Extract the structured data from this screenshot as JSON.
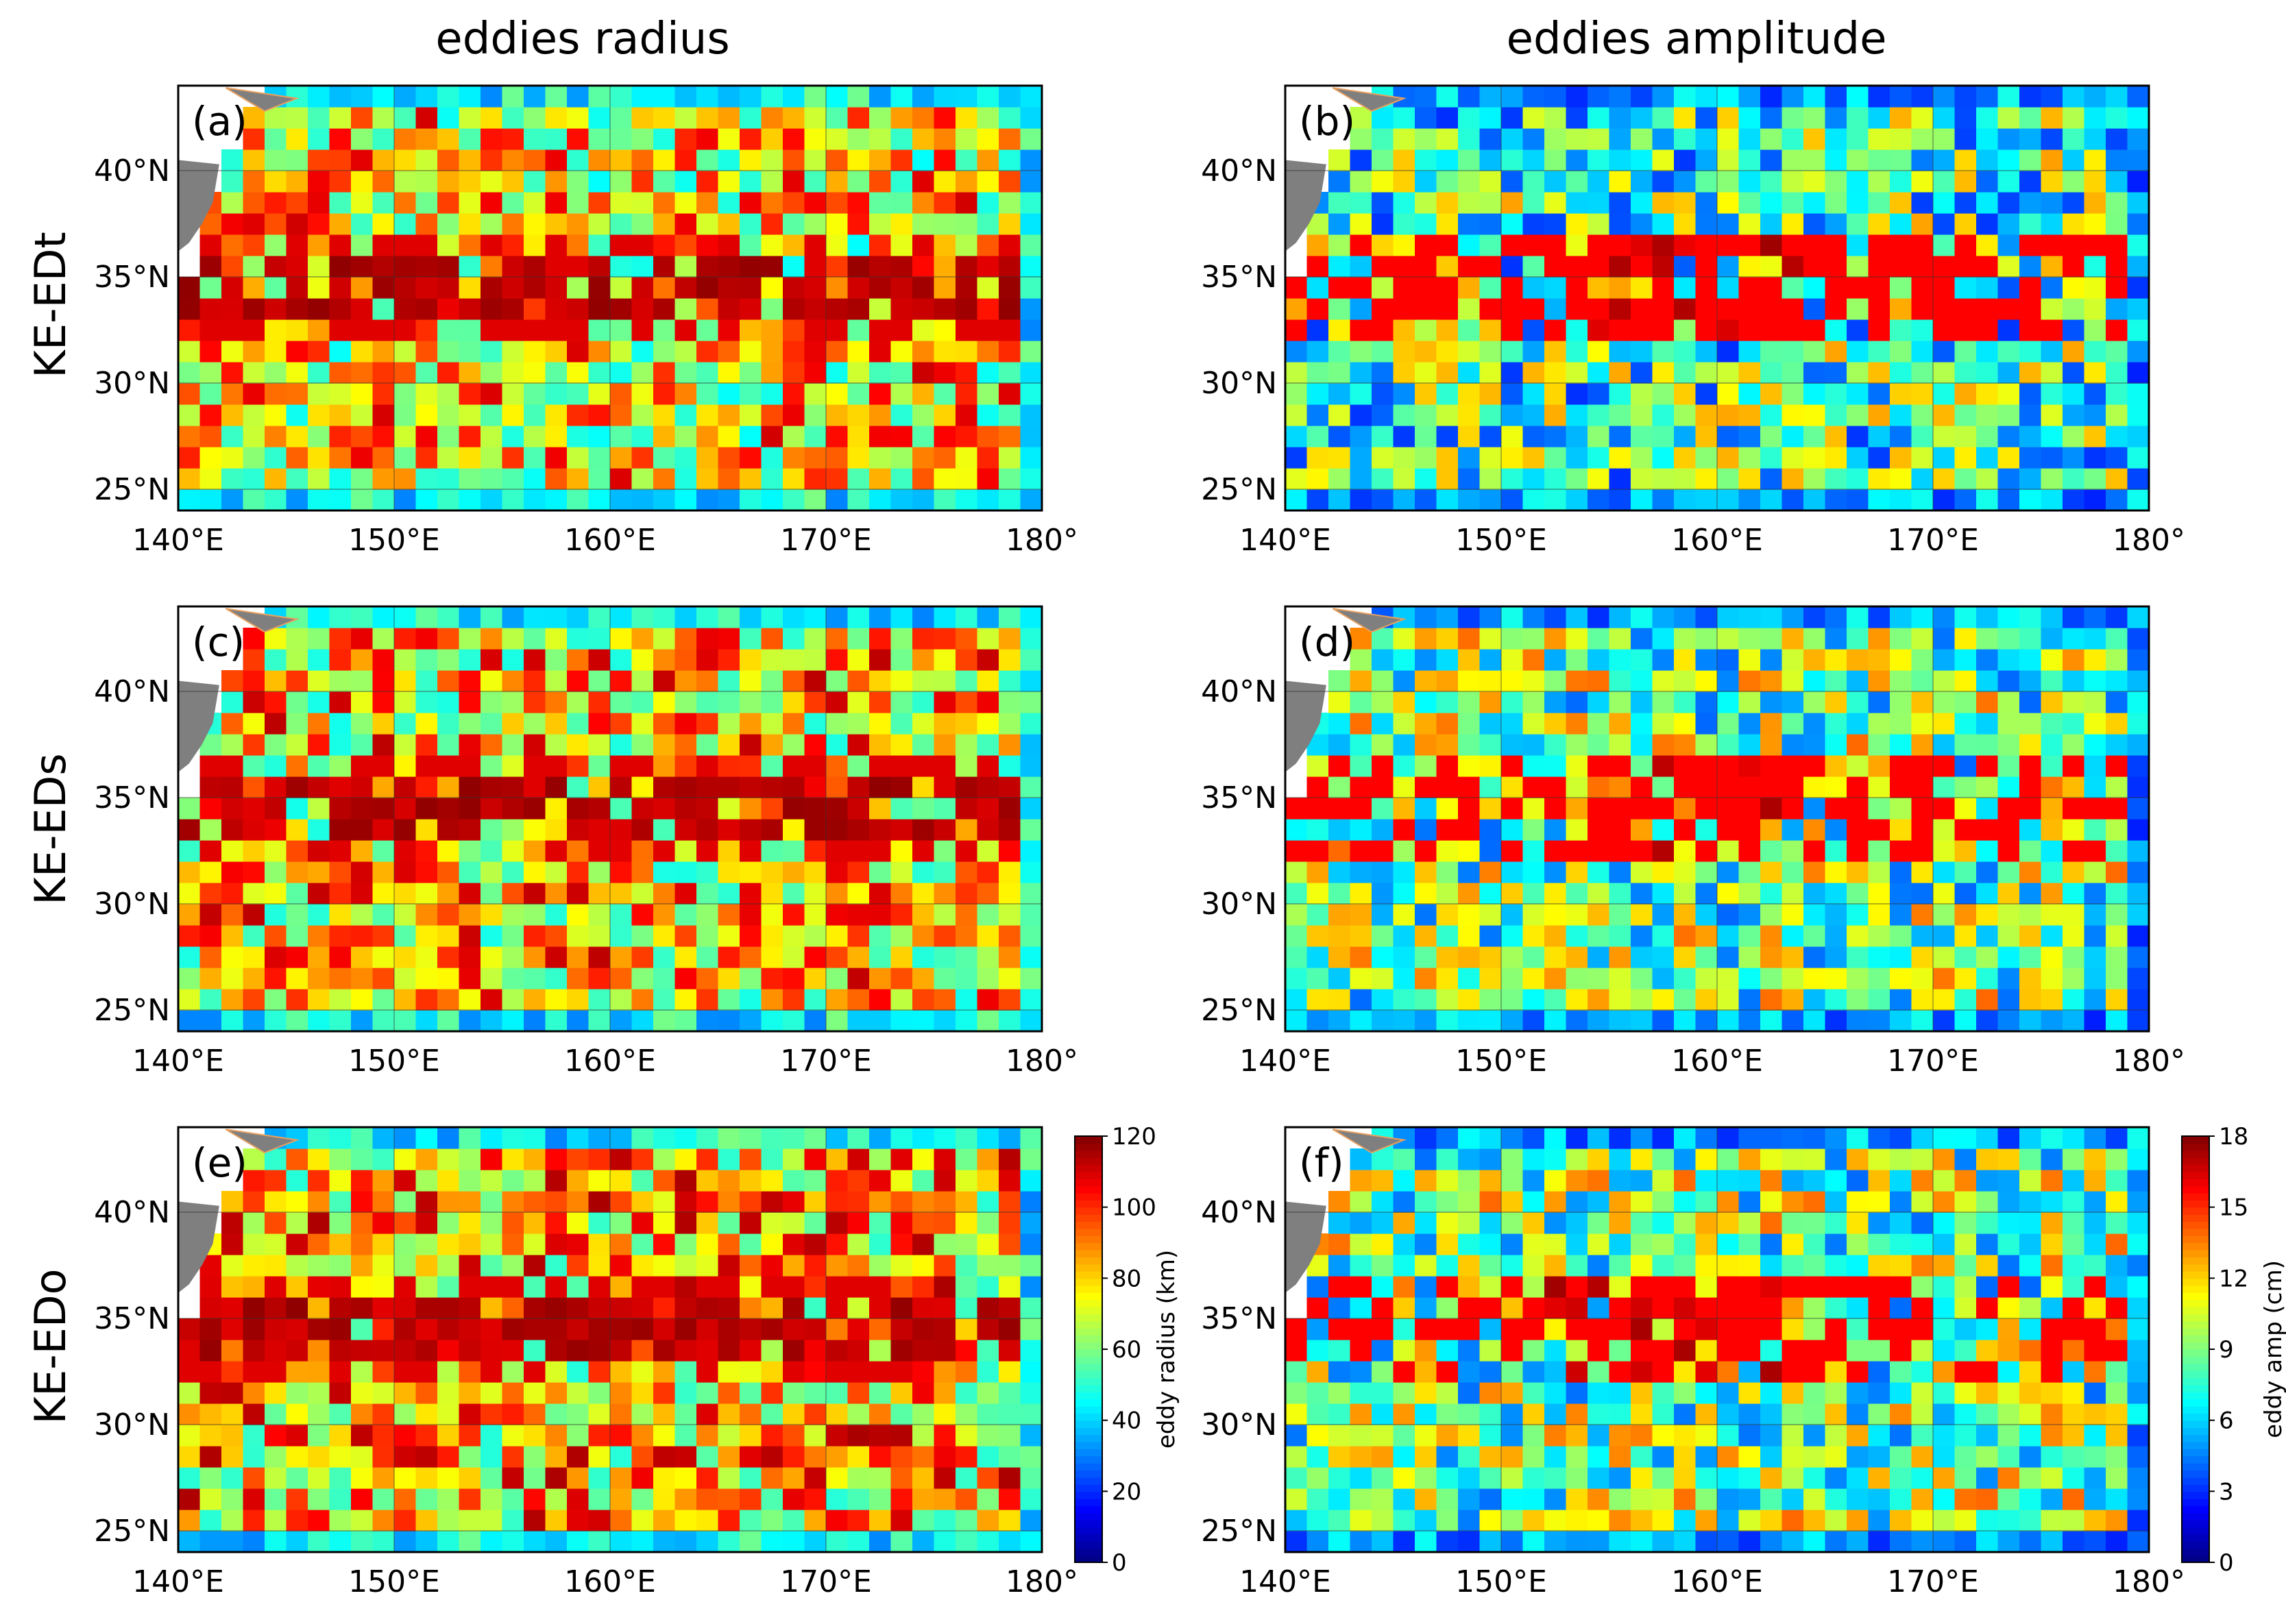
{
  "column_titles": [
    "eddies radius",
    "eddies amplitude"
  ],
  "row_labels": [
    "KE-EDt",
    "KE-EDs",
    "KE-EDo"
  ],
  "colors": {
    "land": "#7f7f7f",
    "coast_highlight": "#e8a060",
    "grid": "#333333",
    "colormap": [
      "#00007f",
      "#0000ff",
      "#007fff",
      "#00ffff",
      "#7fff7f",
      "#ffff00",
      "#ff7f00",
      "#ff0000",
      "#7f0000"
    ]
  },
  "chart_data": [
    {
      "type": "heatmap",
      "panel": "(a)",
      "variable": "eddy radius",
      "units": "km",
      "title": "eddies radius",
      "row_label": "KE-EDt",
      "xlabel": "",
      "ylabel": "",
      "xlim": [
        140,
        180
      ],
      "ylim": [
        24,
        44
      ],
      "cell_size_deg": 1,
      "x_ticks": [
        "140°E",
        "150°E",
        "160°E",
        "170°E",
        "180°"
      ],
      "y_ticks": [
        "25°N",
        "30°N",
        "35°N",
        "40°N"
      ],
      "color_range": [
        0,
        120
      ],
      "features": {
        "high_band_lat": [
          33,
          36
        ],
        "high_band_value": 118,
        "background_value": 78,
        "boundary_value": 45
      }
    },
    {
      "type": "heatmap",
      "panel": "(b)",
      "variable": "eddy amplitude",
      "units": "cm",
      "title": "eddies amplitude",
      "row_label": "KE-EDt",
      "xlabel": "",
      "ylabel": "",
      "xlim": [
        140,
        180
      ],
      "ylim": [
        24,
        44
      ],
      "cell_size_deg": 1,
      "x_ticks": [
        "140°E",
        "150°E",
        "160°E",
        "170°E",
        "180°"
      ],
      "y_ticks": [
        "25°N",
        "30°N",
        "35°N",
        "40°N"
      ],
      "color_range": [
        0,
        18
      ],
      "features": {
        "high_band_lat": [
          32,
          37
        ],
        "high_band_lon": [
          152,
          164
        ],
        "high_band_value": 17.5,
        "background_value": 8,
        "boundary_value": 5
      }
    },
    {
      "type": "heatmap",
      "panel": "(c)",
      "variable": "eddy radius",
      "units": "km",
      "title": "eddies radius",
      "row_label": "KE-EDs",
      "xlabel": "",
      "ylabel": "",
      "xlim": [
        140,
        180
      ],
      "ylim": [
        24,
        44
      ],
      "cell_size_deg": 1,
      "x_ticks": [
        "140°E",
        "150°E",
        "160°E",
        "170°E",
        "180°"
      ],
      "y_ticks": [
        "25°N",
        "30°N",
        "35°N",
        "40°N"
      ],
      "color_range": [
        0,
        120
      ],
      "features": {
        "high_band_lat": [
          33,
          36
        ],
        "high_band_value": 118,
        "background_value": 80,
        "boundary_value": 45
      }
    },
    {
      "type": "heatmap",
      "panel": "(d)",
      "variable": "eddy amplitude",
      "units": "cm",
      "title": "eddies amplitude",
      "row_label": "KE-EDs",
      "xlabel": "",
      "ylabel": "",
      "xlim": [
        140,
        180
      ],
      "ylim": [
        24,
        44
      ],
      "cell_size_deg": 1,
      "x_ticks": [
        "140°E",
        "150°E",
        "160°E",
        "170°E",
        "180°"
      ],
      "y_ticks": [
        "25°N",
        "30°N",
        "35°N",
        "40°N"
      ],
      "color_range": [
        0,
        18
      ],
      "features": {
        "high_band_lat": [
          32,
          37
        ],
        "high_band_lon": [
          154,
          164
        ],
        "high_band_value": 17.5,
        "background_value": 9,
        "boundary_value": 5
      }
    },
    {
      "type": "heatmap",
      "panel": "(e)",
      "variable": "eddy radius",
      "units": "km",
      "title": "eddies radius",
      "row_label": "KE-EDo",
      "xlabel": "",
      "ylabel": "",
      "xlim": [
        140,
        180
      ],
      "ylim": [
        24,
        44
      ],
      "cell_size_deg": 1,
      "x_ticks": [
        "140°E",
        "150°E",
        "160°E",
        "170°E",
        "180°"
      ],
      "y_ticks": [
        "25°N",
        "30°N",
        "35°N",
        "40°N"
      ],
      "color_range": [
        0,
        120
      ],
      "features": {
        "high_band_lat": [
          33,
          36
        ],
        "high_band_value": 118,
        "background_value": 82,
        "boundary_value": 45
      }
    },
    {
      "type": "heatmap",
      "panel": "(f)",
      "variable": "eddy amplitude",
      "units": "cm",
      "title": "eddies amplitude",
      "row_label": "KE-EDo",
      "xlabel": "",
      "ylabel": "",
      "xlim": [
        140,
        180
      ],
      "ylim": [
        24,
        44
      ],
      "cell_size_deg": 1,
      "x_ticks": [
        "140°E",
        "150°E",
        "160°E",
        "170°E",
        "180°"
      ],
      "y_ticks": [
        "25°N",
        "30°N",
        "35°N",
        "40°N"
      ],
      "color_range": [
        0,
        18
      ],
      "features": {
        "high_band_lat": [
          32,
          37
        ],
        "high_band_lon": [
          152,
          164
        ],
        "high_band_value": 17.5,
        "background_value": 9,
        "boundary_value": 5
      }
    }
  ],
  "colorbars": [
    {
      "label": "eddy radius (km)",
      "min": 0,
      "max": 120,
      "ticks": [
        "0",
        "20",
        "40",
        "60",
        "80",
        "100",
        "120"
      ]
    },
    {
      "label": "eddy amp (cm)",
      "min": 0,
      "max": 18,
      "ticks": [
        "0",
        "3",
        "6",
        "9",
        "12",
        "15",
        "18"
      ]
    }
  ]
}
